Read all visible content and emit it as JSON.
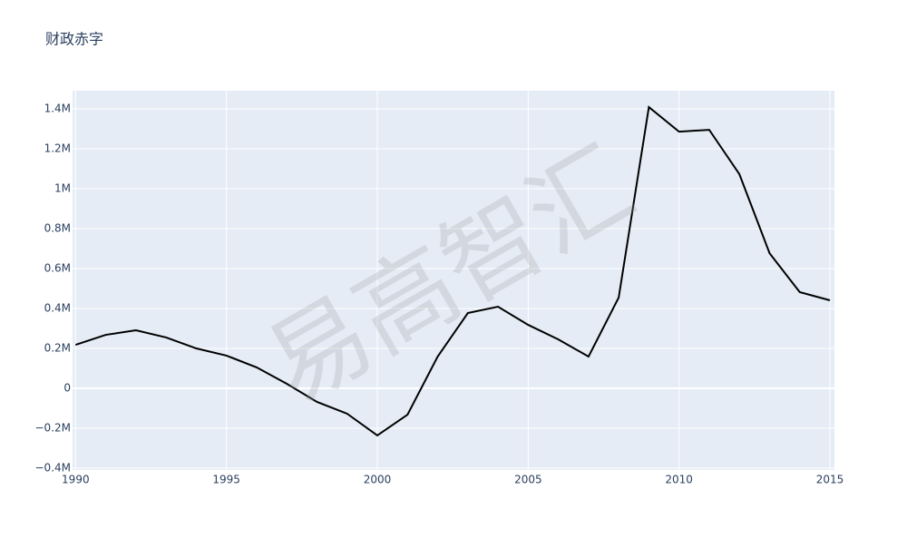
{
  "chart_data": {
    "type": "line",
    "title": "财政赤字",
    "watermark": "易高智汇",
    "x": [
      1990,
      1991,
      1992,
      1993,
      1994,
      1995,
      1996,
      1997,
      1998,
      1999,
      2000,
      2001,
      2002,
      2003,
      2004,
      2005,
      2006,
      2007,
      2008,
      2009,
      2010,
      2011,
      2012,
      2013,
      2014,
      2015
    ],
    "series": [
      {
        "color": "#000000",
        "values": [
          218000,
          268000,
          291000,
          255000,
          200000,
          164000,
          105000,
          23000,
          -68000,
          -127000,
          -236000,
          -132000,
          159000,
          377000,
          409000,
          318000,
          245000,
          159000,
          455000,
          1409000,
          1286000,
          1295000,
          1073000,
          677000,
          482000,
          441000
        ]
      }
    ],
    "xlim": [
      1989.9,
      2015.15
    ],
    "xticks": [
      1990,
      1995,
      2000,
      2005,
      2010,
      2015
    ],
    "ylim": [
      -409000,
      1491000
    ],
    "yticks": [
      {
        "value": -400000,
        "label": "−0.4M"
      },
      {
        "value": -200000,
        "label": "−0.2M"
      },
      0,
      {
        "value": 200000,
        "label": "0.2M"
      },
      {
        "value": 400000,
        "label": "0.4M"
      },
      {
        "value": 600000,
        "label": "0.6M"
      },
      {
        "value": 800000,
        "label": "0.8M"
      },
      {
        "value": 1000000,
        "label": "1M"
      },
      {
        "value": 1200000,
        "label": "1.2M"
      },
      {
        "value": 1400000,
        "label": "1.4M"
      }
    ],
    "grid": true,
    "background": "#e5ecf6"
  }
}
